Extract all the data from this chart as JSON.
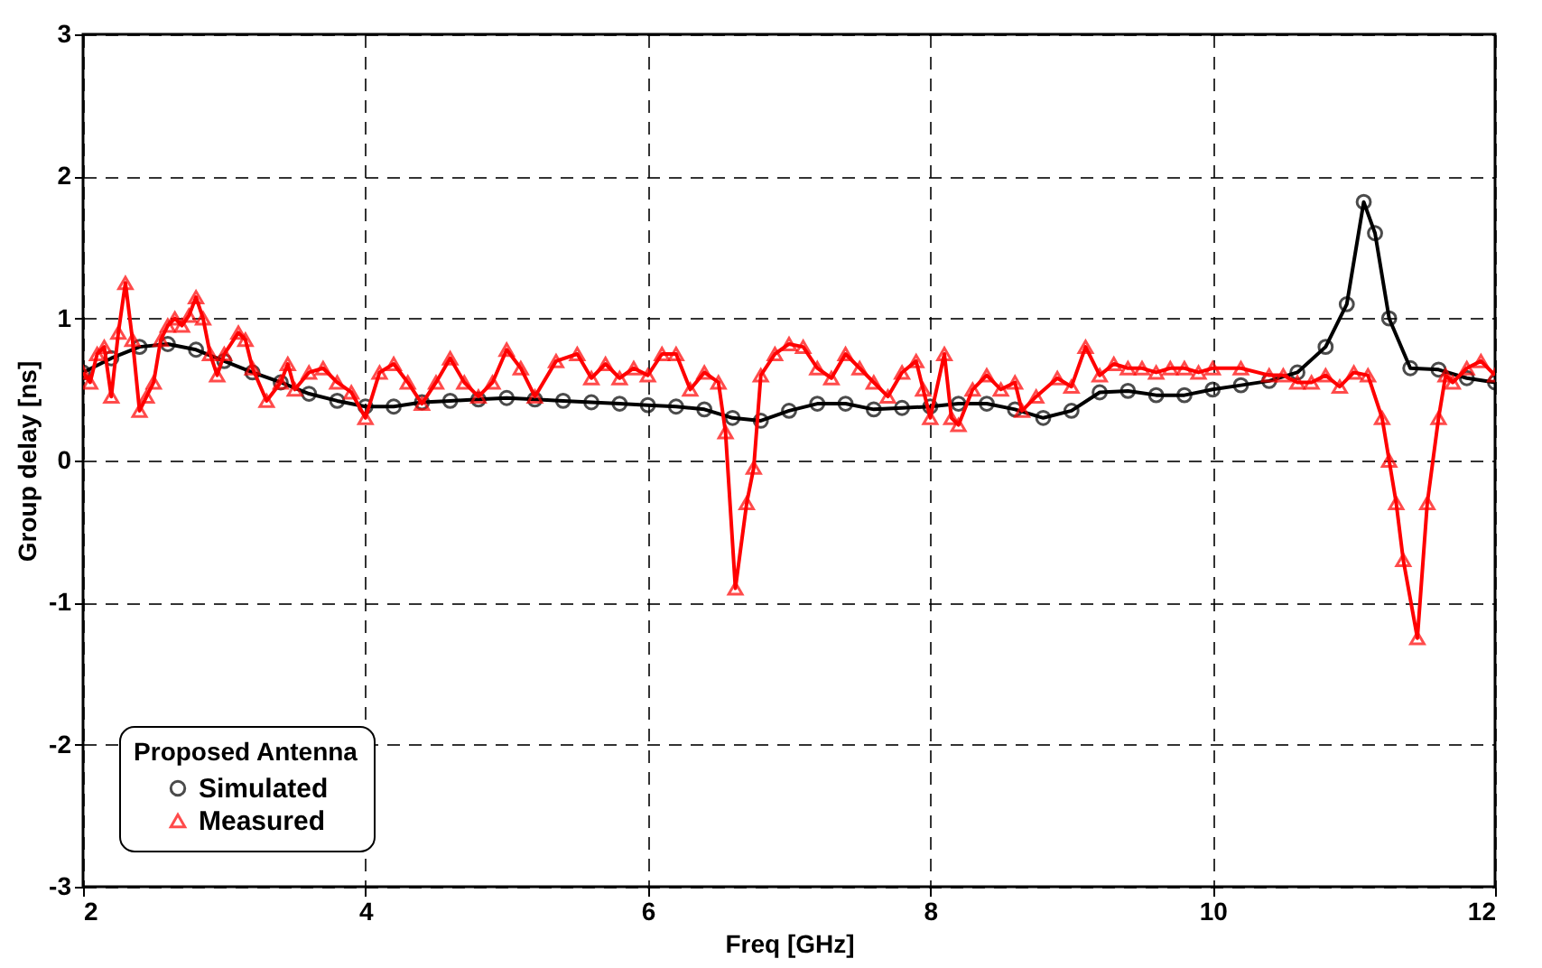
{
  "chart_data": {
    "type": "line",
    "xlabel": "Freq [GHz]",
    "ylabel": "Group delay [ns]",
    "legend_title": "Proposed Antenna",
    "legend": "bottom left",
    "grid": true,
    "line_style": "solid",
    "xlim": [
      2,
      12
    ],
    "xticks": [
      2,
      4,
      6,
      8,
      10,
      12
    ],
    "ylim": [
      -3,
      3
    ],
    "yticks": [
      -3,
      -2,
      -1,
      0,
      1,
      2,
      3
    ],
    "series": [
      {
        "name": "Simulated",
        "color": "#000000",
        "marker": "circle",
        "x": [
          2.0,
          2.2,
          2.4,
          2.6,
          2.8,
          3.0,
          3.2,
          3.4,
          3.6,
          3.8,
          4.0,
          4.2,
          4.4,
          4.6,
          4.8,
          5.0,
          5.2,
          5.4,
          5.6,
          5.8,
          6.0,
          6.2,
          6.4,
          6.6,
          6.8,
          7.0,
          7.2,
          7.4,
          7.6,
          7.8,
          8.0,
          8.2,
          8.4,
          8.6,
          8.8,
          9.0,
          9.2,
          9.4,
          9.6,
          9.8,
          10.0,
          10.2,
          10.4,
          10.6,
          10.8,
          10.95,
          11.07,
          11.15,
          11.25,
          11.4,
          11.6,
          11.8,
          12.0
        ],
        "values": [
          0.62,
          0.72,
          0.8,
          0.82,
          0.78,
          0.7,
          0.62,
          0.55,
          0.47,
          0.42,
          0.38,
          0.38,
          0.41,
          0.42,
          0.43,
          0.44,
          0.43,
          0.42,
          0.41,
          0.4,
          0.39,
          0.38,
          0.36,
          0.3,
          0.28,
          0.35,
          0.4,
          0.4,
          0.36,
          0.37,
          0.38,
          0.4,
          0.4,
          0.36,
          0.3,
          0.35,
          0.48,
          0.49,
          0.46,
          0.46,
          0.5,
          0.53,
          0.56,
          0.62,
          0.8,
          1.1,
          1.82,
          1.6,
          1.0,
          0.65,
          0.64,
          0.58,
          0.55
        ]
      },
      {
        "name": "Measured",
        "color": "#ff0000",
        "marker": "triangle",
        "x": [
          2.0,
          2.05,
          2.1,
          2.15,
          2.2,
          2.25,
          2.3,
          2.35,
          2.4,
          2.45,
          2.5,
          2.55,
          2.6,
          2.65,
          2.7,
          2.75,
          2.8,
          2.85,
          2.9,
          2.95,
          3.0,
          3.1,
          3.15,
          3.2,
          3.3,
          3.4,
          3.45,
          3.5,
          3.6,
          3.7,
          3.8,
          3.9,
          4.0,
          4.1,
          4.2,
          4.3,
          4.4,
          4.5,
          4.6,
          4.7,
          4.8,
          4.9,
          5.0,
          5.1,
          5.2,
          5.35,
          5.5,
          5.6,
          5.7,
          5.8,
          5.9,
          6.0,
          6.1,
          6.2,
          6.3,
          6.4,
          6.5,
          6.55,
          6.62,
          6.7,
          6.75,
          6.8,
          6.9,
          7.0,
          7.1,
          7.2,
          7.3,
          7.4,
          7.5,
          7.6,
          7.7,
          7.8,
          7.9,
          7.95,
          8.0,
          8.1,
          8.15,
          8.2,
          8.3,
          8.4,
          8.5,
          8.6,
          8.65,
          8.75,
          8.9,
          9.0,
          9.1,
          9.2,
          9.3,
          9.4,
          9.5,
          9.6,
          9.7,
          9.8,
          9.9,
          10.0,
          10.2,
          10.4,
          10.5,
          10.6,
          10.7,
          10.8,
          10.9,
          11.0,
          11.1,
          11.2,
          11.25,
          11.3,
          11.35,
          11.45,
          11.52,
          11.6,
          11.65,
          11.7,
          11.8,
          11.9,
          12.0
        ],
        "values": [
          0.62,
          0.55,
          0.75,
          0.8,
          0.45,
          0.9,
          1.25,
          0.85,
          0.35,
          0.45,
          0.55,
          0.85,
          0.95,
          1.0,
          0.95,
          1.02,
          1.15,
          1.0,
          0.75,
          0.6,
          0.75,
          0.9,
          0.85,
          0.65,
          0.42,
          0.55,
          0.68,
          0.5,
          0.62,
          0.65,
          0.55,
          0.48,
          0.3,
          0.62,
          0.68,
          0.55,
          0.4,
          0.55,
          0.72,
          0.55,
          0.45,
          0.55,
          0.78,
          0.65,
          0.45,
          0.7,
          0.75,
          0.58,
          0.68,
          0.58,
          0.65,
          0.6,
          0.75,
          0.75,
          0.5,
          0.62,
          0.55,
          0.2,
          -0.9,
          -0.3,
          -0.05,
          0.6,
          0.75,
          0.82,
          0.8,
          0.65,
          0.58,
          0.75,
          0.65,
          0.55,
          0.45,
          0.62,
          0.7,
          0.5,
          0.3,
          0.75,
          0.3,
          0.25,
          0.5,
          0.6,
          0.5,
          0.55,
          0.35,
          0.45,
          0.58,
          0.52,
          0.8,
          0.6,
          0.68,
          0.65,
          0.65,
          0.62,
          0.65,
          0.65,
          0.62,
          0.65,
          0.65,
          0.6,
          0.6,
          0.55,
          0.55,
          0.6,
          0.52,
          0.62,
          0.6,
          0.3,
          0.0,
          -0.3,
          -0.7,
          -1.25,
          -0.3,
          0.3,
          0.6,
          0.55,
          0.65,
          0.7,
          0.6
        ]
      }
    ]
  }
}
